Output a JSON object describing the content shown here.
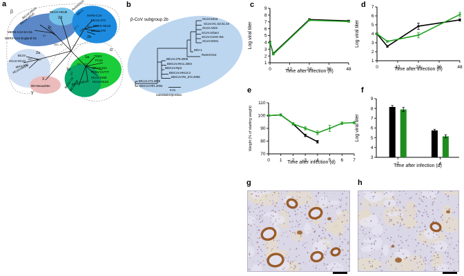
{
  "panel_letters": {
    "a": "a",
    "b": "b",
    "c": "c",
    "d": "d",
    "e": "e",
    "f": "f",
    "g": "g",
    "h": "h"
  },
  "panel_a": {
    "greek": {
      "beta": "β",
      "gamma": "γ",
      "alpha": "α"
    },
    "center_support": "100, 47",
    "clusters": [
      {
        "id": "2c",
        "label": "2c",
        "color": "#5c88c8",
        "members": [
          "BtCoV-HKU4",
          "BtCoV-HKU5",
          "MERS-CoV-SA-N1",
          "MERS-CoV England-N1"
        ],
        "support": [
          "93"
        ]
      },
      {
        "id": "2d",
        "label": "2d",
        "color": "#74c2e8",
        "members": [
          "BtCoV-HKU9"
        ],
        "support": []
      },
      {
        "id": "2b",
        "label": "2b",
        "color": "#1d8ce0",
        "members": [
          "RsSHC014",
          "WIV-1",
          "SARS-CoV",
          "BtCoV-273",
          "BtCoV-HKU3",
          "BtCoV-279"
        ],
        "support": [
          "87.1",
          "100",
          "100"
        ]
      },
      {
        "id": "2a",
        "label": "2a",
        "color": "#cfdef2",
        "members": [
          "BCoV",
          "HCoV-OC43",
          "MHV-A59",
          "HCoV-HKU1"
        ],
        "support": [
          "100",
          "100"
        ]
      },
      {
        "id": "3",
        "label": "3",
        "color": "#ecbcbc",
        "members": [
          "IBV-Beaudette"
        ],
        "support": []
      },
      {
        "id": "1a",
        "label": "1a",
        "color": "#1bcd3a",
        "members": [
          "TGEV",
          "FCoV",
          "BtCoV-512",
          "PEDV-CV777",
          "HCoV-229E",
          "HCoV-NL63"
        ],
        "support": [
          "100",
          "100"
        ]
      },
      {
        "id": "1b",
        "label": "1b",
        "color": "#07a569",
        "members": [
          "BtCoV-HKU8",
          "BtCoV-1A",
          "BtCoV-1B"
        ],
        "support": [
          "100"
        ]
      }
    ]
  },
  "panel_b": {
    "title": "β-CoV subgroup 2b",
    "blob_color": "#bcd6f0",
    "tips": [
      "SCoV.SZ16",
      "SCoV.HC.SZ.61.03",
      "SCoV.A022",
      "SCoV.Urbani",
      "SCoV.CUHK-W1",
      "SCoV.GD01",
      "WIV-1",
      "RsSHC014",
      "BtCoV.279.2005",
      "BtSCoV.Rm1.2004",
      "BtSCoV.Rp3",
      "BtSCoV.HKU3.2",
      "BtSCoV.Rs_672.2006",
      "BtCoV.273.2005",
      "BtSCoV.Rf1.2004"
    ],
    "scale_value": "0.01",
    "scale_label": "Substitution/position"
  },
  "chart_data": [
    {
      "id": "c",
      "type": "line",
      "title": "",
      "xlabel": "Time after infection (h)",
      "ylabel": "Log viral titer",
      "xlim": [
        0,
        48
      ],
      "xticks": [
        0,
        12,
        24,
        36,
        48
      ],
      "ylim": [
        1,
        9
      ],
      "yticks": [
        1,
        2,
        3,
        4,
        5,
        6,
        7,
        8,
        9
      ],
      "x": [
        0,
        2,
        24,
        48
      ],
      "series": [
        {
          "name": "black-series",
          "color": "#000000",
          "values": [
            4.0,
            2.35,
            7.35,
            7.15
          ],
          "err": [
            0.15,
            0.12,
            0.12,
            0.1
          ]
        },
        {
          "name": "green-series",
          "color": "#1fa01f",
          "values": [
            3.95,
            2.25,
            7.25,
            7.05
          ],
          "err": [
            0.12,
            0.1,
            0.1,
            0.1
          ]
        }
      ]
    },
    {
      "id": "d",
      "type": "line",
      "title": "",
      "xlabel": "Time after infection (h)",
      "ylabel": "Log viral titer",
      "xlim": [
        0,
        48
      ],
      "xticks": [
        0,
        12,
        24,
        36,
        48
      ],
      "ylim": [
        1,
        7
      ],
      "yticks": [
        1,
        2,
        3,
        4,
        5,
        6,
        7
      ],
      "x": [
        0,
        6,
        24,
        48
      ],
      "series": [
        {
          "name": "black-series",
          "color": "#000000",
          "values": [
            4.0,
            2.6,
            4.85,
            5.55
          ],
          "err": [
            0.1,
            0.1,
            0.35,
            0.12
          ]
        },
        {
          "name": "green-series",
          "color": "#1fa01f",
          "values": [
            4.0,
            3.15,
            3.85,
            6.15
          ],
          "err": [
            0.1,
            0.1,
            0.3,
            0.25
          ]
        }
      ]
    },
    {
      "id": "e",
      "type": "line",
      "title": "",
      "xlabel": "Time after infection (d)",
      "ylabel": "Weight (% of starting weight)",
      "xlim": [
        0,
        7
      ],
      "xticks": [
        0,
        1,
        2,
        3,
        4,
        5,
        6,
        7
      ],
      "ylim": [
        70,
        110
      ],
      "yticks": [
        70,
        80,
        90,
        100,
        110
      ],
      "series": [
        {
          "name": "black-series",
          "color": "#000000",
          "x": [
            0,
            1,
            2,
            3,
            4
          ],
          "values": [
            100,
            100.5,
            93.5,
            84.5,
            79.5
          ],
          "err": [
            0.5,
            0.8,
            0.8,
            1.0,
            1.0
          ]
        },
        {
          "name": "green-series",
          "color": "#1fa01f",
          "x": [
            0,
            1,
            2,
            3,
            4,
            5,
            6,
            7
          ],
          "values": [
            100,
            100.5,
            93.5,
            90,
            86.5,
            90,
            94,
            94.5
          ],
          "err": [
            0.5,
            0.8,
            1.0,
            1.2,
            1.5,
            2.5,
            1.0,
            0.8
          ]
        }
      ]
    },
    {
      "id": "f",
      "type": "bar",
      "title": "",
      "xlabel": "Time after infection (d)",
      "ylabel": "Log viral titer",
      "categories": [
        "2",
        "4"
      ],
      "ylim": [
        3,
        9
      ],
      "yticks": [
        3,
        4,
        5,
        6,
        7,
        8,
        9
      ],
      "series": [
        {
          "name": "black-series",
          "color": "#000000",
          "values": [
            8.15,
            5.75
          ],
          "err": [
            0.15,
            0.12
          ]
        },
        {
          "name": "green-series",
          "color": "#1f8c1f",
          "values": [
            7.9,
            5.15
          ],
          "err": [
            0.2,
            0.15
          ]
        }
      ]
    }
  ],
  "histology": {
    "palette": {
      "background": "#dad7e7",
      "tissue": "#e6dcc9",
      "alveoli": "#e7e5f1",
      "stain": "#96551f",
      "nuclei": "#7b5e93"
    },
    "g": {
      "stain_pattern": "strong-airway-rings"
    },
    "h": {
      "stain_pattern": "sparse-focal"
    }
  }
}
